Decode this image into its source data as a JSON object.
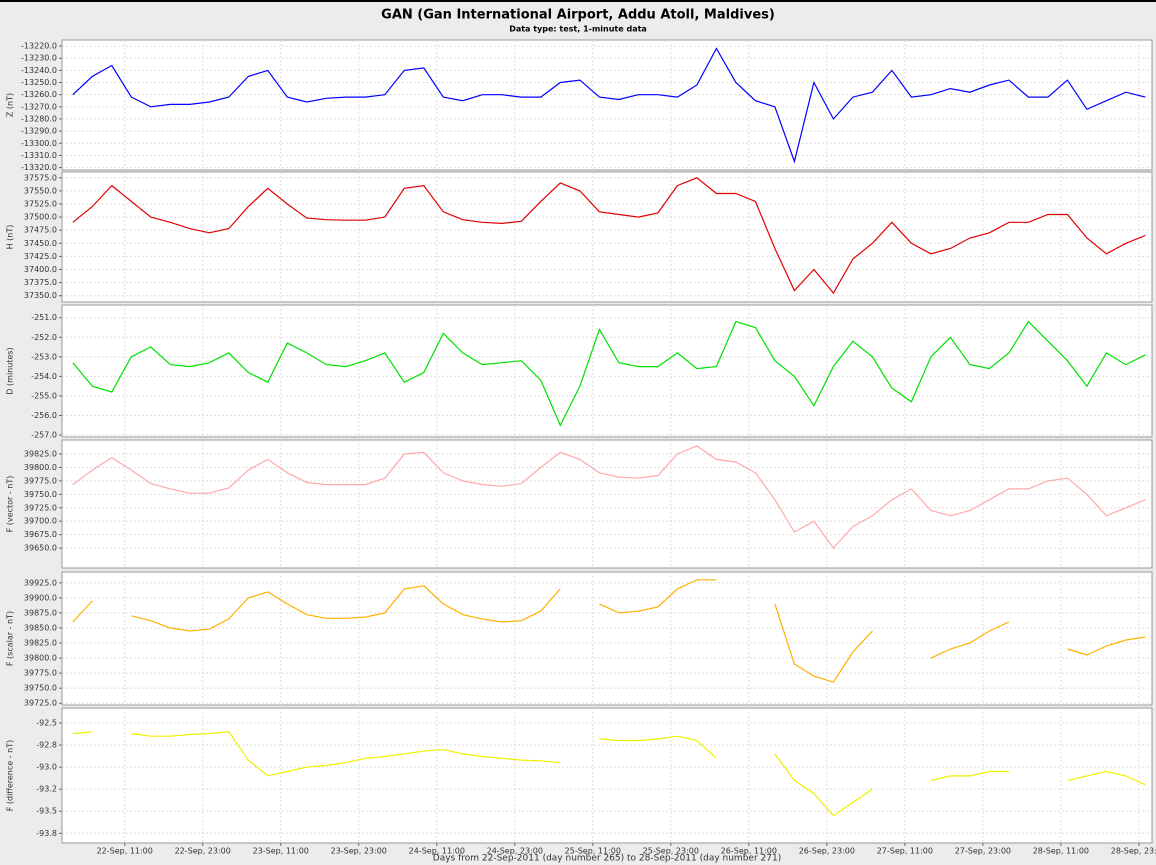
{
  "chart_data": {
    "type": "line",
    "title": "GAN (Gan International Airport, Addu Atoll, Maldives)",
    "subtitle": "Data type: test, 1-minute data",
    "xlabel": "Days from 22-Sep-2011 (day number 265) to 28-Sep-2011 (day number 271)",
    "grid": true,
    "xlim": [
      265.056,
      272.042
    ],
    "xticks": [
      {
        "value": 265.458,
        "label": "22-Sep, 11:00"
      },
      {
        "value": 265.958,
        "label": "22-Sep, 23:00"
      },
      {
        "value": 266.458,
        "label": "23-Sep, 11:00"
      },
      {
        "value": 266.958,
        "label": "23-Sep, 23:00"
      },
      {
        "value": 267.458,
        "label": "24-Sep, 11:00"
      },
      {
        "value": 267.958,
        "label": "24-Sep, 23:00"
      },
      {
        "value": 268.458,
        "label": "25-Sep, 11:00"
      },
      {
        "value": 268.958,
        "label": "25-Sep, 23:00"
      },
      {
        "value": 269.458,
        "label": "26-Sep, 11:00"
      },
      {
        "value": 269.958,
        "label": "26-Sep, 23:00"
      },
      {
        "value": 270.458,
        "label": "27-Sep, 11:00"
      },
      {
        "value": 270.958,
        "label": "27-Sep, 23:00"
      },
      {
        "value": 271.458,
        "label": "28-Sep, 11:00"
      },
      {
        "value": 271.958,
        "label": "28-Sep, 23:00"
      }
    ],
    "x": [
      265.125,
      265.25,
      265.375,
      265.5,
      265.625,
      265.75,
      265.875,
      266,
      266.125,
      266.25,
      266.375,
      266.5,
      266.625,
      266.75,
      266.875,
      267,
      267.125,
      267.25,
      267.375,
      267.5,
      267.625,
      267.75,
      267.875,
      268,
      268.125,
      268.25,
      268.375,
      268.5,
      268.625,
      268.75,
      268.875,
      269,
      269.125,
      269.25,
      269.375,
      269.5,
      269.625,
      269.75,
      269.875,
      270,
      270.125,
      270.25,
      270.375,
      270.5,
      270.625,
      270.75,
      270.875,
      271,
      271.125,
      271.25,
      271.375,
      271.5,
      271.625,
      271.75,
      271.875,
      272
    ],
    "series": [
      {
        "name": "Z (nT)",
        "color": "#0000ff",
        "ylim": [
          -13322,
          -13215
        ],
        "yticks": [
          {
            "value": -13220,
            "label": "-13220.0"
          },
          {
            "value": -13230,
            "label": "-13230.0"
          },
          {
            "value": -13240,
            "label": "-13240.0"
          },
          {
            "value": -13250,
            "label": "-13250.0"
          },
          {
            "value": -13260,
            "label": "-13260.0"
          },
          {
            "value": -13270,
            "label": "-13270.0"
          },
          {
            "value": -13280,
            "label": "-13280.0"
          },
          {
            "value": -13290,
            "label": "-13290.0"
          },
          {
            "value": -13300,
            "label": "-13300.0"
          },
          {
            "value": -13310,
            "label": "-13310.0"
          },
          {
            "value": -13320,
            "label": "-13320.0"
          }
        ],
        "values": [
          -13260,
          -13245,
          -13236,
          -13262,
          -13270,
          -13268,
          -13268,
          -13266,
          -13262,
          -13245,
          -13240,
          -13262,
          -13266,
          -13263,
          -13262,
          -13262,
          -13260,
          -13240,
          -13238,
          -13262,
          -13265,
          -13260,
          -13260,
          -13262,
          -13262,
          -13250,
          -13248,
          -13262,
          -13264,
          -13260,
          -13260,
          -13262,
          -13252,
          -13222,
          -13250,
          -13265,
          -13270,
          -13315,
          -13250,
          -13280,
          -13262,
          -13258,
          -13240,
          -13262,
          -13260,
          -13255,
          -13258,
          -13252,
          -13248,
          -13262,
          -13262,
          -13248,
          -13272,
          -13265,
          -13258,
          -13262
        ]
      },
      {
        "name": "H (nT)",
        "color": "#e00000",
        "ylim": [
          37338,
          37586
        ],
        "yticks": [
          {
            "value": 37350,
            "label": "37350.0"
          },
          {
            "value": 37375,
            "label": "37375.0"
          },
          {
            "value": 37400,
            "label": "37400.0"
          },
          {
            "value": 37425,
            "label": "37425.0"
          },
          {
            "value": 37450,
            "label": "37450.0"
          },
          {
            "value": 37475,
            "label": "37475.0"
          },
          {
            "value": 37500,
            "label": "37500.0"
          },
          {
            "value": 37525,
            "label": "37525.0"
          },
          {
            "value": 37550,
            "label": "37550.0"
          },
          {
            "value": 37575,
            "label": "37575.0"
          }
        ],
        "values": [
          37490,
          37520,
          37560,
          37530,
          37500,
          37490,
          37478,
          37470,
          37478,
          37520,
          37555,
          37525,
          37498,
          37495,
          37494,
          37494,
          37500,
          37555,
          37560,
          37510,
          37495,
          37490,
          37488,
          37492,
          37530,
          37565,
          37550,
          37510,
          37505,
          37500,
          37508,
          37560,
          37575,
          37545,
          37545,
          37530,
          37440,
          37360,
          37400,
          37355,
          37420,
          37450,
          37490,
          37450,
          37430,
          37440,
          37460,
          37470,
          37490,
          37490,
          37505,
          37505,
          37460,
          37430,
          37450,
          37465
        ]
      },
      {
        "name": "D (minutes)",
        "color": "#00e000",
        "ylim": [
          -257.1,
          -250.35
        ],
        "yticks": [
          {
            "value": -251,
            "label": "-251.0"
          },
          {
            "value": -252,
            "label": "-252.0"
          },
          {
            "value": -253,
            "label": "-253.0"
          },
          {
            "value": -254,
            "label": "-254.0"
          },
          {
            "value": -255,
            "label": "-255.0"
          },
          {
            "value": -256,
            "label": "-256.0"
          },
          {
            "value": -257,
            "label": "-257.0"
          }
        ],
        "values": [
          -253.3,
          -254.5,
          -254.8,
          -253.0,
          -252.5,
          -253.4,
          -253.5,
          -253.3,
          -252.8,
          -253.8,
          -254.3,
          -252.3,
          -252.8,
          -253.4,
          -253.5,
          -253.2,
          -252.8,
          -254.3,
          -253.8,
          -251.8,
          -252.8,
          -253.4,
          -253.3,
          -253.2,
          -254.2,
          -256.5,
          -254.5,
          -251.6,
          -253.3,
          -253.5,
          -253.5,
          -252.8,
          -253.6,
          -253.5,
          -251.2,
          -251.5,
          -253.2,
          -254.0,
          -255.5,
          -253.5,
          -252.2,
          -253.0,
          -254.6,
          -255.3,
          -253.0,
          -252.0,
          -253.4,
          -253.6,
          -252.8,
          -251.2,
          -252.2,
          -253.2,
          -254.5,
          -252.8,
          -253.4,
          -252.9
        ]
      },
      {
        "name": "F (vector - nT)",
        "color": "#ffa8a8",
        "ylim": [
          39613,
          39851
        ],
        "yticks": [
          {
            "value": 39650,
            "label": "39650.0"
          },
          {
            "value": 39675,
            "label": "39675.0"
          },
          {
            "value": 39700,
            "label": "39700.0"
          },
          {
            "value": 39725,
            "label": "39725.0"
          },
          {
            "value": 39750,
            "label": "39750.0"
          },
          {
            "value": 39775,
            "label": "39775.0"
          },
          {
            "value": 39800,
            "label": "39800.0"
          },
          {
            "value": 39825,
            "label": "39825.0"
          }
        ],
        "values": [
          39768,
          39795,
          39818,
          39795,
          39770,
          39760,
          39752,
          39752,
          39762,
          39795,
          39815,
          39790,
          39772,
          39768,
          39768,
          39768,
          39780,
          39825,
          39828,
          39790,
          39775,
          39768,
          39765,
          39770,
          39800,
          39828,
          39815,
          39790,
          39782,
          39780,
          39785,
          39825,
          39840,
          39815,
          39810,
          39790,
          39740,
          39680,
          39700,
          39650,
          39690,
          39710,
          39740,
          39760,
          39720,
          39710,
          39720,
          39740,
          39760,
          39760,
          39775,
          39780,
          39750,
          39710,
          39725,
          39740
        ]
      },
      {
        "name": "F (scalar - nT)",
        "color": "#ffb000",
        "ylim": [
          39722,
          39943
        ],
        "yticks": [
          {
            "value": 39725,
            "label": "39725.0"
          },
          {
            "value": 39750,
            "label": "39750.0"
          },
          {
            "value": 39775,
            "label": "39775.0"
          },
          {
            "value": 39800,
            "label": "39800.0"
          },
          {
            "value": 39825,
            "label": "39825.0"
          },
          {
            "value": 39850,
            "label": "39850.0"
          },
          {
            "value": 39875,
            "label": "39875.0"
          },
          {
            "value": 39900,
            "label": "39900.0"
          },
          {
            "value": 39925,
            "label": "39925.0"
          }
        ],
        "values": [
          39860,
          39895,
          null,
          39870,
          39862,
          39850,
          39845,
          39848,
          39865,
          39900,
          39910,
          39890,
          39872,
          39866,
          39866,
          39868,
          39875,
          39915,
          39920,
          39890,
          39872,
          39865,
          39860,
          39862,
          39878,
          39915,
          null,
          39890,
          39875,
          39878,
          39885,
          39915,
          39930,
          39930,
          null,
          null,
          39890,
          39790,
          39770,
          39760,
          39810,
          39845,
          null,
          null,
          39800,
          39815,
          39825,
          39845,
          39860,
          null,
          null,
          39815,
          39805,
          39820,
          39830,
          39835
        ]
      },
      {
        "name": "F (difference - nT)",
        "color": "#f0f000",
        "ylim": [
          -93.86,
          -92.33
        ],
        "yticks": [
          -92.5,
          {
            "value": -92.75,
            "label": "-92.8"
          },
          {
            "value": -93,
            "label": "-93.0"
          },
          {
            "value": -93.25,
            "label": "-93.2"
          },
          -93.5,
          {
            "value": -93.75,
            "label": "-93.8"
          }
        ],
        "values": [
          -92.62,
          -92.6,
          null,
          -92.62,
          -92.65,
          -92.65,
          -92.63,
          -92.62,
          -92.6,
          -92.92,
          -93.1,
          -93.05,
          -93.0,
          -92.98,
          -92.95,
          -92.9,
          -92.88,
          -92.85,
          -92.82,
          -92.8,
          -92.85,
          -92.88,
          -92.9,
          -92.92,
          -92.93,
          -92.95,
          null,
          -92.68,
          -92.7,
          -92.7,
          -92.68,
          -92.65,
          -92.7,
          -92.9,
          null,
          null,
          -92.85,
          -93.15,
          -93.3,
          -93.55,
          -93.4,
          -93.25,
          null,
          null,
          -93.15,
          -93.1,
          -93.1,
          -93.05,
          -93.05,
          null,
          null,
          -93.15,
          -93.1,
          -93.05,
          -93.1,
          -93.2
        ]
      }
    ]
  }
}
